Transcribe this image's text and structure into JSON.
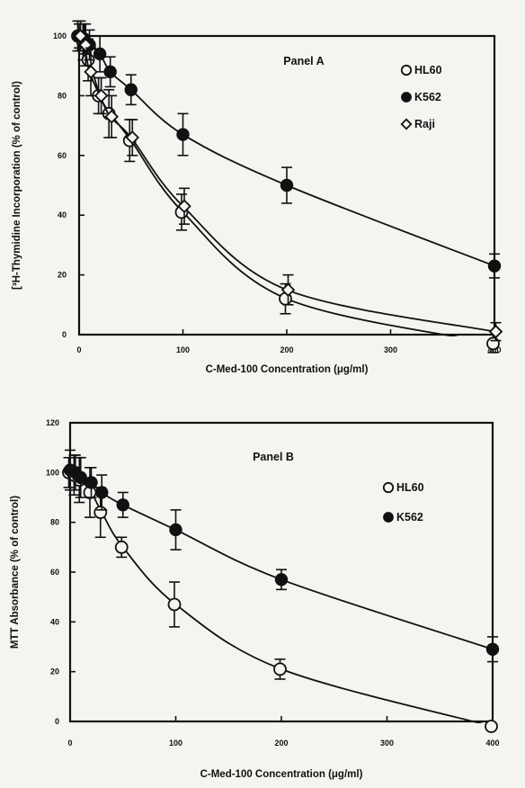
{
  "chart_data": [
    {
      "type": "scatter",
      "title": "Panel A",
      "xlabel": "C-Med-100 Concentration (μg/ml)",
      "ylabel": "[³H-Thymidine Incorporation (% of control)",
      "xlim": [
        0,
        400
      ],
      "ylim": [
        0,
        100
      ],
      "xticks": [
        0,
        100,
        200,
        300,
        400
      ],
      "yticks": [
        0,
        20,
        40,
        60,
        80,
        100
      ],
      "legend_position": "top-right",
      "grid": false,
      "series": [
        {
          "name": "HL60",
          "marker": "open-circle",
          "x": [
            0,
            5,
            10,
            20,
            30,
            50,
            100,
            200,
            400
          ],
          "y": [
            100,
            98,
            92,
            80,
            74,
            65,
            41,
            12,
            -3
          ],
          "err": [
            5,
            6,
            7,
            6,
            8,
            7,
            6,
            5,
            3
          ]
        },
        {
          "name": "K562",
          "marker": "filled-circle",
          "x": [
            0,
            5,
            10,
            20,
            30,
            50,
            100,
            200,
            400
          ],
          "y": [
            100,
            99,
            97,
            94,
            88,
            82,
            67,
            50,
            23
          ],
          "err": [
            4,
            5,
            5,
            6,
            5,
            5,
            7,
            6,
            4
          ]
        },
        {
          "name": "Raji",
          "marker": "open-diamond",
          "x": [
            0,
            5,
            10,
            20,
            30,
            50,
            100,
            200,
            400
          ],
          "y": [
            100,
            97,
            88,
            80,
            73,
            66,
            43,
            15,
            1
          ],
          "err": [
            5,
            7,
            8,
            6,
            7,
            6,
            6,
            5,
            3
          ]
        }
      ]
    },
    {
      "type": "scatter",
      "title": "Panel B",
      "xlabel": "C-Med-100 Concentration (μg/ml)",
      "ylabel": "MTT Absorbance (% of control)",
      "xlim": [
        0,
        400
      ],
      "ylim": [
        0,
        120
      ],
      "xticks": [
        0,
        100,
        200,
        300,
        400
      ],
      "yticks": [
        0,
        20,
        40,
        60,
        80,
        100,
        120
      ],
      "legend_position": "top-right",
      "grid": false,
      "series": [
        {
          "name": "HL60",
          "marker": "open-circle",
          "x": [
            0,
            5,
            10,
            20,
            30,
            50,
            100,
            200,
            400
          ],
          "y": [
            100,
            99,
            97,
            92,
            84,
            70,
            47,
            21,
            -2
          ],
          "err": [
            6,
            8,
            9,
            10,
            10,
            4,
            9,
            4,
            1
          ]
        },
        {
          "name": "K562",
          "marker": "filled-circle",
          "x": [
            0,
            5,
            10,
            20,
            30,
            50,
            100,
            200,
            400
          ],
          "y": [
            101,
            100,
            98,
            96,
            92,
            87,
            77,
            57,
            29
          ],
          "err": [
            8,
            7,
            8,
            6,
            7,
            5,
            8,
            4,
            5
          ]
        }
      ]
    }
  ]
}
